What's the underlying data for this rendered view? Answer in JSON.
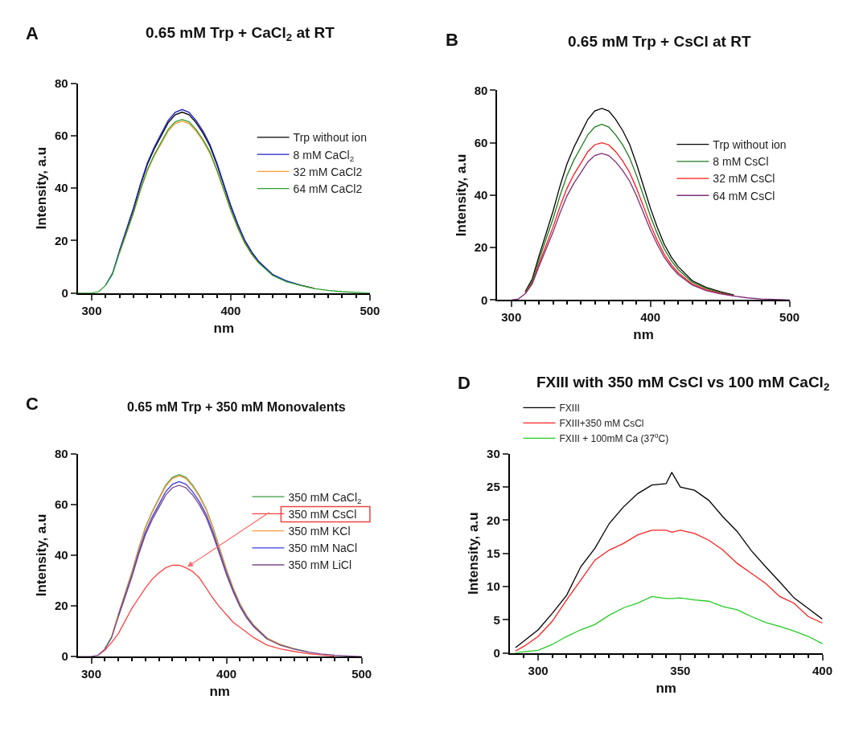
{
  "chart_data": [
    {
      "type": "line",
      "title": "0.65 mM Trp + CaCl$_{2}$ at RT",
      "annotations": [
        "A"
      ],
      "xlabel": "nm",
      "ylabel": "Intensity, a.u",
      "legend": "right",
      "xlim": [
        290,
        500
      ],
      "ylim": [
        0,
        80
      ],
      "yticks": [
        0,
        20,
        40,
        60,
        80
      ],
      "xticks": [
        300,
        {
          "value": 310,
          "label": null
        },
        {
          "value": 320,
          "label": null
        },
        {
          "value": 330,
          "label": null
        },
        {
          "value": 340,
          "label": null
        },
        {
          "value": 350,
          "label": null
        },
        {
          "value": 360,
          "label": null
        },
        {
          "value": 370,
          "label": null
        },
        {
          "value": 380,
          "label": null
        },
        {
          "value": 390,
          "label": null
        },
        400,
        {
          "value": 410,
          "label": null
        },
        {
          "value": 420,
          "label": null
        },
        {
          "value": 430,
          "label": null
        },
        {
          "value": 440,
          "label": null
        },
        {
          "value": 450,
          "label": null
        },
        {
          "value": 460,
          "label": null
        },
        {
          "value": 470,
          "label": null
        },
        {
          "value": 480,
          "label": null
        },
        {
          "value": 490,
          "label": null
        },
        500
      ],
      "x": [
        290,
        300,
        305,
        310,
        315,
        320,
        325,
        330,
        335,
        340,
        345,
        350,
        355,
        360,
        365,
        370,
        375,
        380,
        385,
        390,
        395,
        400,
        405,
        410,
        415,
        420,
        430,
        440,
        450,
        460,
        470,
        480,
        490,
        500
      ],
      "series": [
        {
          "name": "Trp without ion",
          "color": "#000000",
          "values": [
            null,
            null,
            null,
            null,
            null,
            16,
            24,
            32,
            41,
            49,
            55,
            60,
            65,
            68,
            69,
            68,
            65,
            61,
            56,
            49,
            41,
            33,
            26,
            20,
            15.5,
            12,
            7,
            4.5,
            3,
            1.8,
            null,
            null,
            null,
            null
          ]
        },
        {
          "name": "8 mM CaCl$_{2}$",
          "color": "#1f1fcc",
          "values": [
            null,
            null,
            null,
            3,
            7.6,
            16.2,
            24.3,
            32.4,
            41.5,
            49.6,
            55.7,
            60.8,
            65.8,
            68.9,
            70,
            68.9,
            65.8,
            61.8,
            56.7,
            49.6,
            41.5,
            33.4,
            26.3,
            20.2,
            15.7,
            12.1,
            7.1,
            4.6,
            3,
            null,
            null,
            null,
            null,
            null
          ]
        },
        {
          "name": "32 mM CaCl2",
          "color": "#ff9a2e",
          "values": [
            null,
            null,
            null,
            null,
            null,
            15.2,
            22.8,
            30.4,
            39,
            46.6,
            52.3,
            57,
            61.8,
            64.6,
            65.6,
            64.6,
            61.8,
            58,
            53.2,
            46.6,
            39,
            31.4,
            24.7,
            19,
            14.7,
            11.4,
            null,
            null,
            null,
            null,
            null,
            null,
            null,
            null
          ]
        },
        {
          "name": "64 mM CaCl2",
          "color": "#2ca02c",
          "values": [
            0,
            0,
            0.5,
            2.9,
            7.2,
            15.4,
            23,
            30.7,
            39.4,
            47,
            52.8,
            57.6,
            62.4,
            65.3,
            66.2,
            65.3,
            62.4,
            58.6,
            53.8,
            47,
            39.4,
            31.7,
            25,
            19.2,
            14.9,
            11.5,
            6.7,
            4.3,
            2.9,
            1.7,
            1,
            0.5,
            0.2,
            0
          ]
        }
      ]
    },
    {
      "type": "line",
      "title": "0.65 mM Trp + CsCl at RT",
      "annotations": [
        "B"
      ],
      "xlabel": "nm",
      "ylabel": "Intensity, a.u",
      "legend": "right",
      "xlim": [
        290,
        500
      ],
      "ylim": [
        0,
        80
      ],
      "yticks": [
        0,
        20,
        40,
        60,
        80
      ],
      "xticks": [
        300,
        {
          "value": 310,
          "label": null
        },
        {
          "value": 320,
          "label": null
        },
        {
          "value": 330,
          "label": null
        },
        {
          "value": 340,
          "label": null
        },
        {
          "value": 350,
          "label": null
        },
        {
          "value": 360,
          "label": null
        },
        {
          "value": 370,
          "label": null
        },
        {
          "value": 380,
          "label": null
        },
        {
          "value": 390,
          "label": null
        },
        400,
        {
          "value": 410,
          "label": null
        },
        {
          "value": 420,
          "label": null
        },
        {
          "value": 430,
          "label": null
        },
        {
          "value": 440,
          "label": null
        },
        {
          "value": 450,
          "label": null
        },
        {
          "value": 460,
          "label": null
        },
        {
          "value": 470,
          "label": null
        },
        {
          "value": 480,
          "label": null
        },
        {
          "value": 490,
          "label": null
        },
        500
      ],
      "x": [
        300,
        305,
        310,
        315,
        320,
        325,
        330,
        335,
        340,
        345,
        350,
        355,
        360,
        365,
        370,
        375,
        380,
        385,
        390,
        395,
        400,
        405,
        410,
        415,
        420,
        430,
        440,
        450,
        460,
        470,
        480,
        490,
        500
      ],
      "series": [
        {
          "name": "Trp without ion",
          "color": "#000000",
          "values": [
            null,
            null,
            3.2,
            8,
            17,
            25.4,
            33.9,
            43.5,
            51.9,
            58.3,
            63.6,
            68.9,
            72.1,
            73.1,
            72.1,
            68.9,
            64.7,
            59.4,
            51.9,
            43.5,
            35,
            27.6,
            21.2,
            16.4,
            12.7,
            7.4,
            4.8,
            3.2,
            1.9,
            null,
            null,
            null,
            null
          ]
        },
        {
          "name": "8 mM CsCl",
          "color": "#1e7a1e",
          "values": [
            null,
            null,
            2.9,
            7.3,
            15.5,
            23.3,
            31,
            39.8,
            47.5,
            53.4,
            58.2,
            63,
            66,
            67,
            66,
            63,
            59.2,
            54.3,
            47.5,
            39.8,
            32,
            25.2,
            19.4,
            15,
            11.6,
            6.8,
            4.4,
            2.9,
            1.7,
            null,
            null,
            null,
            null
          ]
        },
        {
          "name": "32 mM CsCl",
          "color": "#ff1a1a",
          "values": [
            null,
            null,
            2.6,
            6.5,
            13.9,
            20.9,
            27.8,
            35.7,
            42.6,
            47.9,
            52.2,
            56.6,
            59.2,
            60,
            59.2,
            56.6,
            53.1,
            48.7,
            42.6,
            35.7,
            28.7,
            22.6,
            17.4,
            13.5,
            10.4,
            6.1,
            3.9,
            2.6,
            1.6,
            null,
            null,
            null,
            null
          ]
        },
        {
          "name": "64 mM CsCl",
          "color": "#7b2c7b",
          "values": [
            0,
            0.4,
            2.4,
            6.1,
            13,
            19.4,
            25.9,
            33.2,
            39.7,
            44.6,
            48.6,
            52.7,
            55.1,
            55.9,
            55.1,
            52.7,
            49.4,
            45.4,
            39.7,
            33.2,
            26.7,
            21.1,
            16.2,
            12.6,
            9.7,
            5.7,
            3.6,
            2.4,
            1.5,
            0.8,
            0.4,
            0.2,
            0
          ]
        }
      ]
    },
    {
      "type": "line",
      "title": "0.65 mM Trp + 350 mM Monovalents",
      "annotations": [
        "C"
      ],
      "xlabel": "nm",
      "ylabel": "Intensity, a.u",
      "legend": "right",
      "xlim": [
        290,
        500
      ],
      "ylim": [
        0,
        80
      ],
      "yticks": [
        0,
        20,
        40,
        60,
        80
      ],
      "xticks": [
        300,
        {
          "value": 310,
          "label": null
        },
        {
          "value": 320,
          "label": null
        },
        {
          "value": 330,
          "label": null
        },
        {
          "value": 340,
          "label": null
        },
        {
          "value": 350,
          "label": null
        },
        {
          "value": 360,
          "label": null
        },
        {
          "value": 370,
          "label": null
        },
        {
          "value": 380,
          "label": null
        },
        {
          "value": 390,
          "label": null
        },
        400,
        {
          "value": 410,
          "label": null
        },
        {
          "value": 420,
          "label": null
        },
        {
          "value": 430,
          "label": null
        },
        {
          "value": 440,
          "label": null
        },
        {
          "value": 450,
          "label": null
        },
        {
          "value": 460,
          "label": null
        },
        {
          "value": 470,
          "label": null
        },
        {
          "value": 480,
          "label": null
        },
        {
          "value": 490,
          "label": null
        },
        500
      ],
      "x": [
        290,
        300,
        305,
        310,
        315,
        320,
        325,
        330,
        335,
        340,
        345,
        350,
        355,
        360,
        365,
        370,
        375,
        380,
        385,
        390,
        395,
        400,
        405,
        410,
        415,
        420,
        430,
        440,
        450,
        460,
        470,
        480,
        490,
        500
      ],
      "series": [
        {
          "name": "350 mM CaCl$_{2}$",
          "color": "#3a9a3a",
          "values": [
            null,
            null,
            null,
            3.1,
            7.8,
            16.6,
            25,
            33.3,
            42.6,
            51,
            57.2,
            62.4,
            67.6,
            70.7,
            71.8,
            70.7,
            67.6,
            63.4,
            58.2,
            51,
            42.6,
            34.3,
            27,
            20.8,
            16.1,
            12.5,
            7.3,
            4.7,
            3.1,
            1.9,
            null,
            null,
            null,
            null
          ]
        },
        {
          "name": "350 mM CsCl",
          "color": "#ff4444",
          "values": [
            null,
            null,
            0.5,
            2.5,
            5.5,
            9,
            14,
            19,
            23,
            27,
            30.5,
            33,
            35,
            36,
            36,
            35,
            33.5,
            31,
            27,
            23,
            19.5,
            16.5,
            13.5,
            11.5,
            9.5,
            7.5,
            4.5,
            3,
            2,
            1.2,
            0.6,
            0.2,
            null,
            null
          ]
        },
        {
          "name": "350 mM KCl",
          "color": "#ff9a40",
          "values": [
            null,
            null,
            null,
            null,
            7.7,
            16.5,
            24.8,
            33,
            42.3,
            50.6,
            56.8,
            62,
            67.1,
            70.2,
            71.3,
            70.2,
            67.1,
            63,
            57.8,
            50.6,
            42.3,
            34,
            26.8,
            20.6,
            16,
            12.4,
            7.2,
            4.6,
            3.1,
            null,
            null,
            null,
            null,
            null
          ]
        },
        {
          "name": "350 mM NaCl",
          "color": "#3a3ae0",
          "values": [
            null,
            null,
            null,
            null,
            null,
            16,
            24,
            32,
            41,
            49,
            55,
            60,
            65,
            68,
            69,
            68,
            65,
            61,
            56,
            49,
            41,
            33,
            26,
            20,
            15.5,
            12,
            7,
            null,
            null,
            null,
            null,
            null,
            null,
            null
          ]
        },
        {
          "name": "350 mM LiCl",
          "color": "#7a4a8a",
          "values": [
            0,
            0,
            0.5,
            2.9,
            7.4,
            15.7,
            23.5,
            31.4,
            40.2,
            48,
            53.9,
            58.8,
            63.7,
            66.6,
            67.6,
            66.6,
            63.7,
            59.8,
            54.9,
            48,
            40.2,
            32.3,
            25.5,
            19.6,
            15.2,
            11.8,
            6.9,
            4.4,
            2.9,
            1.8,
            1,
            0.5,
            0.2,
            0
          ]
        }
      ]
    },
    {
      "type": "line",
      "title": "FXIII with 350 mM CsCl vs 100 mM CaCl$_{2}$",
      "annotations": [
        "D"
      ],
      "xlabel": "nm",
      "ylabel": "Intensity, a.u",
      "legend": "top left",
      "xlim": [
        290,
        400
      ],
      "ylim": [
        0,
        30
      ],
      "yticks": [
        0,
        5,
        10,
        15,
        20,
        25,
        30
      ],
      "xticks": [
        {
          "value": 295,
          "label": null
        },
        300,
        {
          "value": 305,
          "label": null
        },
        {
          "value": 310,
          "label": null
        },
        {
          "value": 315,
          "label": null
        },
        {
          "value": 320,
          "label": null
        },
        {
          "value": 325,
          "label": null
        },
        {
          "value": 330,
          "label": null
        },
        {
          "value": 335,
          "label": null
        },
        {
          "value": 340,
          "label": null
        },
        {
          "value": 345,
          "label": null
        },
        350,
        {
          "value": 355,
          "label": null
        },
        {
          "value": 360,
          "label": null
        },
        {
          "value": 365,
          "label": null
        },
        {
          "value": 370,
          "label": null
        },
        {
          "value": 375,
          "label": null
        },
        {
          "value": 380,
          "label": null
        },
        {
          "value": 385,
          "label": null
        },
        {
          "value": 390,
          "label": null
        },
        {
          "value": 395,
          "label": null
        },
        400
      ],
      "x": [
        292,
        295,
        300,
        305,
        310,
        315,
        320,
        325,
        330,
        335,
        340,
        345,
        347,
        350,
        355,
        360,
        365,
        370,
        375,
        380,
        385,
        390,
        395,
        400
      ],
      "series": [
        {
          "name": "FXIII",
          "color": "#000000",
          "values": [
            0.8,
            1.8,
            3.5,
            6,
            8.7,
            13,
            15.8,
            19.5,
            22,
            24,
            25.3,
            25.5,
            27.2,
            25,
            24.5,
            23,
            20.5,
            18.3,
            15.4,
            13,
            10.7,
            8.3,
            6.7,
            5.1
          ]
        },
        {
          "name": "FXIII+350 mM CsCl",
          "color": "#ff2020",
          "values": [
            0.3,
            1,
            2.5,
            4.8,
            8,
            11,
            14,
            15.5,
            16.5,
            17.8,
            18.5,
            18.5,
            18.2,
            18.5,
            18,
            17,
            15.5,
            13.5,
            12,
            10.5,
            8.5,
            7.5,
            5.5,
            4.5
          ]
        },
        {
          "name": "FXIII + 100mM Ca (37$^{o}$C)",
          "color": "#22cc22",
          "values": [
            0,
            0.2,
            0.4,
            1.3,
            2.5,
            3.5,
            4.3,
            5.7,
            6.8,
            7.5,
            8.5,
            8.2,
            8.2,
            8.3,
            8,
            7.8,
            7,
            6.5,
            5.5,
            4.6,
            4,
            3.3,
            2.5,
            1.4
          ]
        }
      ]
    }
  ]
}
